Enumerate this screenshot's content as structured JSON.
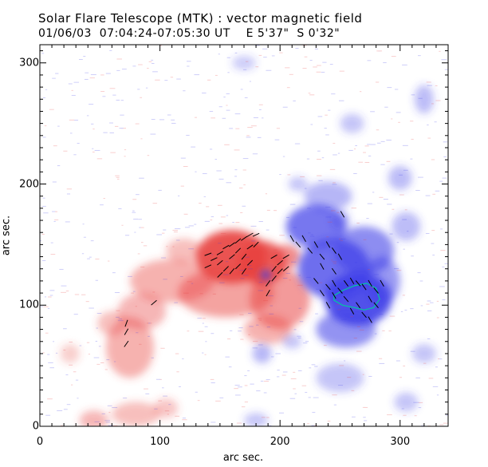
{
  "title": "Solar Flare Telescope (MTK) : vector magnetic field",
  "subtitle": "01/06/03  07:04:24-07:05:30 UT    E 5'37\"  S 0'32\"",
  "colors": {
    "positive_polarity": "#e8413f",
    "negative_polarity": "#3f3fe8",
    "contour": "#00c8a0",
    "vectors": "#000000",
    "axes": "#000000"
  },
  "chart_data": {
    "type": "heatmap",
    "title": "Solar Flare Telescope (MTK) : vector magnetic field",
    "subtitle": "01/06/03  07:04:24-07:05:30 UT    E 5'37\"  S 0'32\"",
    "xlabel": "arc sec.",
    "ylabel": "arc sec.",
    "xlim": [
      0,
      340
    ],
    "ylim": [
      0,
      315
    ],
    "x_ticks": [
      0,
      100,
      200,
      300
    ],
    "y_ticks": [
      0,
      100,
      200,
      300
    ],
    "grid": false,
    "positive_regions": [
      {
        "x": 160,
        "y": 140,
        "rx": 30,
        "ry": 22,
        "strength": 1.0
      },
      {
        "x": 185,
        "y": 135,
        "rx": 20,
        "ry": 18,
        "strength": 0.9
      },
      {
        "x": 155,
        "y": 110,
        "rx": 40,
        "ry": 20,
        "strength": 0.45
      },
      {
        "x": 200,
        "y": 105,
        "rx": 25,
        "ry": 25,
        "strength": 0.5
      },
      {
        "x": 190,
        "y": 80,
        "rx": 20,
        "ry": 12,
        "strength": 0.35
      },
      {
        "x": 110,
        "y": 120,
        "rx": 35,
        "ry": 18,
        "strength": 0.35
      },
      {
        "x": 85,
        "y": 95,
        "rx": 20,
        "ry": 15,
        "strength": 0.3
      },
      {
        "x": 75,
        "y": 65,
        "rx": 20,
        "ry": 25,
        "strength": 0.35
      },
      {
        "x": 120,
        "y": 145,
        "rx": 15,
        "ry": 10,
        "strength": 0.25
      },
      {
        "x": 60,
        "y": 85,
        "rx": 12,
        "ry": 10,
        "strength": 0.25
      },
      {
        "x": 45,
        "y": 5,
        "rx": 12,
        "ry": 8,
        "strength": 0.3
      },
      {
        "x": 80,
        "y": 10,
        "rx": 20,
        "ry": 10,
        "strength": 0.25
      },
      {
        "x": 105,
        "y": 15,
        "rx": 10,
        "ry": 8,
        "strength": 0.2
      },
      {
        "x": 25,
        "y": 60,
        "rx": 8,
        "ry": 8,
        "strength": 0.15
      },
      {
        "x": 205,
        "y": 140,
        "rx": 12,
        "ry": 10,
        "strength": 0.6
      }
    ],
    "negative_regions": [
      {
        "x": 265,
        "y": 105,
        "rx": 28,
        "ry": 22,
        "strength": 1.0
      },
      {
        "x": 245,
        "y": 130,
        "rx": 30,
        "ry": 25,
        "strength": 0.8
      },
      {
        "x": 230,
        "y": 165,
        "rx": 25,
        "ry": 18,
        "strength": 0.75
      },
      {
        "x": 270,
        "y": 145,
        "rx": 25,
        "ry": 20,
        "strength": 0.6
      },
      {
        "x": 255,
        "y": 80,
        "rx": 25,
        "ry": 15,
        "strength": 0.55
      },
      {
        "x": 285,
        "y": 120,
        "rx": 15,
        "ry": 20,
        "strength": 0.5
      },
      {
        "x": 240,
        "y": 190,
        "rx": 20,
        "ry": 12,
        "strength": 0.3
      },
      {
        "x": 188,
        "y": 125,
        "rx": 4,
        "ry": 4,
        "strength": 0.9
      },
      {
        "x": 250,
        "y": 40,
        "rx": 20,
        "ry": 12,
        "strength": 0.2
      },
      {
        "x": 185,
        "y": 60,
        "rx": 8,
        "ry": 8,
        "strength": 0.3
      },
      {
        "x": 260,
        "y": 250,
        "rx": 10,
        "ry": 8,
        "strength": 0.2
      },
      {
        "x": 300,
        "y": 205,
        "rx": 10,
        "ry": 10,
        "strength": 0.25
      },
      {
        "x": 305,
        "y": 165,
        "rx": 12,
        "ry": 12,
        "strength": 0.25
      },
      {
        "x": 250,
        "y": 170,
        "rx": 8,
        "ry": 8,
        "strength": 0.25
      },
      {
        "x": 215,
        "y": 200,
        "rx": 8,
        "ry": 6,
        "strength": 0.2
      },
      {
        "x": 170,
        "y": 300,
        "rx": 10,
        "ry": 6,
        "strength": 0.15
      },
      {
        "x": 320,
        "y": 270,
        "rx": 8,
        "ry": 12,
        "strength": 0.25
      },
      {
        "x": 305,
        "y": 20,
        "rx": 10,
        "ry": 8,
        "strength": 0.2
      },
      {
        "x": 320,
        "y": 60,
        "rx": 10,
        "ry": 8,
        "strength": 0.2
      },
      {
        "x": 180,
        "y": 5,
        "rx": 10,
        "ry": 6,
        "strength": 0.2
      },
      {
        "x": 210,
        "y": 70,
        "rx": 8,
        "ry": 6,
        "strength": 0.2
      }
    ],
    "vectors": [
      {
        "x": 140,
        "y": 142,
        "angle": 20
      },
      {
        "x": 145,
        "y": 138,
        "angle": 25
      },
      {
        "x": 150,
        "y": 143,
        "angle": 30
      },
      {
        "x": 155,
        "y": 148,
        "angle": 30
      },
      {
        "x": 160,
        "y": 150,
        "angle": 35
      },
      {
        "x": 165,
        "y": 153,
        "angle": 40
      },
      {
        "x": 170,
        "y": 155,
        "angle": 35
      },
      {
        "x": 175,
        "y": 158,
        "angle": 30
      },
      {
        "x": 180,
        "y": 158,
        "angle": 25
      },
      {
        "x": 150,
        "y": 135,
        "angle": 40
      },
      {
        "x": 155,
        "y": 130,
        "angle": 45
      },
      {
        "x": 160,
        "y": 140,
        "angle": 40
      },
      {
        "x": 165,
        "y": 145,
        "angle": 45
      },
      {
        "x": 170,
        "y": 140,
        "angle": 50
      },
      {
        "x": 175,
        "y": 148,
        "angle": 35
      },
      {
        "x": 180,
        "y": 150,
        "angle": 45
      },
      {
        "x": 160,
        "y": 128,
        "angle": 50
      },
      {
        "x": 165,
        "y": 132,
        "angle": 45
      },
      {
        "x": 170,
        "y": 128,
        "angle": 55
      },
      {
        "x": 175,
        "y": 135,
        "angle": 45
      },
      {
        "x": 150,
        "y": 125,
        "angle": 45
      },
      {
        "x": 140,
        "y": 132,
        "angle": 25
      },
      {
        "x": 195,
        "y": 140,
        "angle": 30
      },
      {
        "x": 200,
        "y": 135,
        "angle": 40
      },
      {
        "x": 205,
        "y": 140,
        "angle": 30
      },
      {
        "x": 195,
        "y": 130,
        "angle": 50
      },
      {
        "x": 200,
        "y": 128,
        "angle": 45
      },
      {
        "x": 190,
        "y": 118,
        "angle": 55
      },
      {
        "x": 195,
        "y": 122,
        "angle": 50
      },
      {
        "x": 205,
        "y": 130,
        "angle": 40
      },
      {
        "x": 210,
        "y": 155,
        "angle": 300
      },
      {
        "x": 215,
        "y": 150,
        "angle": 310
      },
      {
        "x": 220,
        "y": 155,
        "angle": 300
      },
      {
        "x": 225,
        "y": 145,
        "angle": 310
      },
      {
        "x": 230,
        "y": 150,
        "angle": 300
      },
      {
        "x": 235,
        "y": 140,
        "angle": 310
      },
      {
        "x": 240,
        "y": 150,
        "angle": 300
      },
      {
        "x": 245,
        "y": 145,
        "angle": 305
      },
      {
        "x": 250,
        "y": 140,
        "angle": 300
      },
      {
        "x": 230,
        "y": 120,
        "angle": 310
      },
      {
        "x": 235,
        "y": 110,
        "angle": 305
      },
      {
        "x": 240,
        "y": 115,
        "angle": 310
      },
      {
        "x": 245,
        "y": 118,
        "angle": 300
      },
      {
        "x": 250,
        "y": 112,
        "angle": 310
      },
      {
        "x": 255,
        "y": 118,
        "angle": 305
      },
      {
        "x": 260,
        "y": 120,
        "angle": 300
      },
      {
        "x": 265,
        "y": 118,
        "angle": 310
      },
      {
        "x": 270,
        "y": 115,
        "angle": 305
      },
      {
        "x": 275,
        "y": 118,
        "angle": 300
      },
      {
        "x": 280,
        "y": 112,
        "angle": 310
      },
      {
        "x": 285,
        "y": 118,
        "angle": 300
      },
      {
        "x": 245,
        "y": 108,
        "angle": 300
      },
      {
        "x": 255,
        "y": 105,
        "angle": 310
      },
      {
        "x": 265,
        "y": 100,
        "angle": 305
      },
      {
        "x": 275,
        "y": 105,
        "angle": 300
      },
      {
        "x": 280,
        "y": 100,
        "angle": 310
      },
      {
        "x": 260,
        "y": 95,
        "angle": 300
      },
      {
        "x": 270,
        "y": 92,
        "angle": 310
      },
      {
        "x": 275,
        "y": 88,
        "angle": 300
      },
      {
        "x": 240,
        "y": 100,
        "angle": 300
      },
      {
        "x": 245,
        "y": 128,
        "angle": 305
      },
      {
        "x": 235,
        "y": 132,
        "angle": 300
      },
      {
        "x": 252,
        "y": 175,
        "angle": 300
      },
      {
        "x": 95,
        "y": 102,
        "angle": 40
      },
      {
        "x": 72,
        "y": 85,
        "angle": 70
      },
      {
        "x": 72,
        "y": 78,
        "angle": 60
      },
      {
        "x": 72,
        "y": 68,
        "angle": 55
      },
      {
        "x": 190,
        "y": 110,
        "angle": 60
      }
    ],
    "contours": [
      {
        "color": "contour",
        "points": [
          [
            245,
            108
          ],
          [
            252,
            112
          ],
          [
            262,
            116
          ],
          [
            272,
            118
          ],
          [
            280,
            114
          ],
          [
            283,
            105
          ],
          [
            278,
            98
          ],
          [
            270,
            96
          ],
          [
            262,
            98
          ],
          [
            252,
            100
          ],
          [
            245,
            104
          ],
          [
            245,
            108
          ]
        ]
      }
    ]
  }
}
